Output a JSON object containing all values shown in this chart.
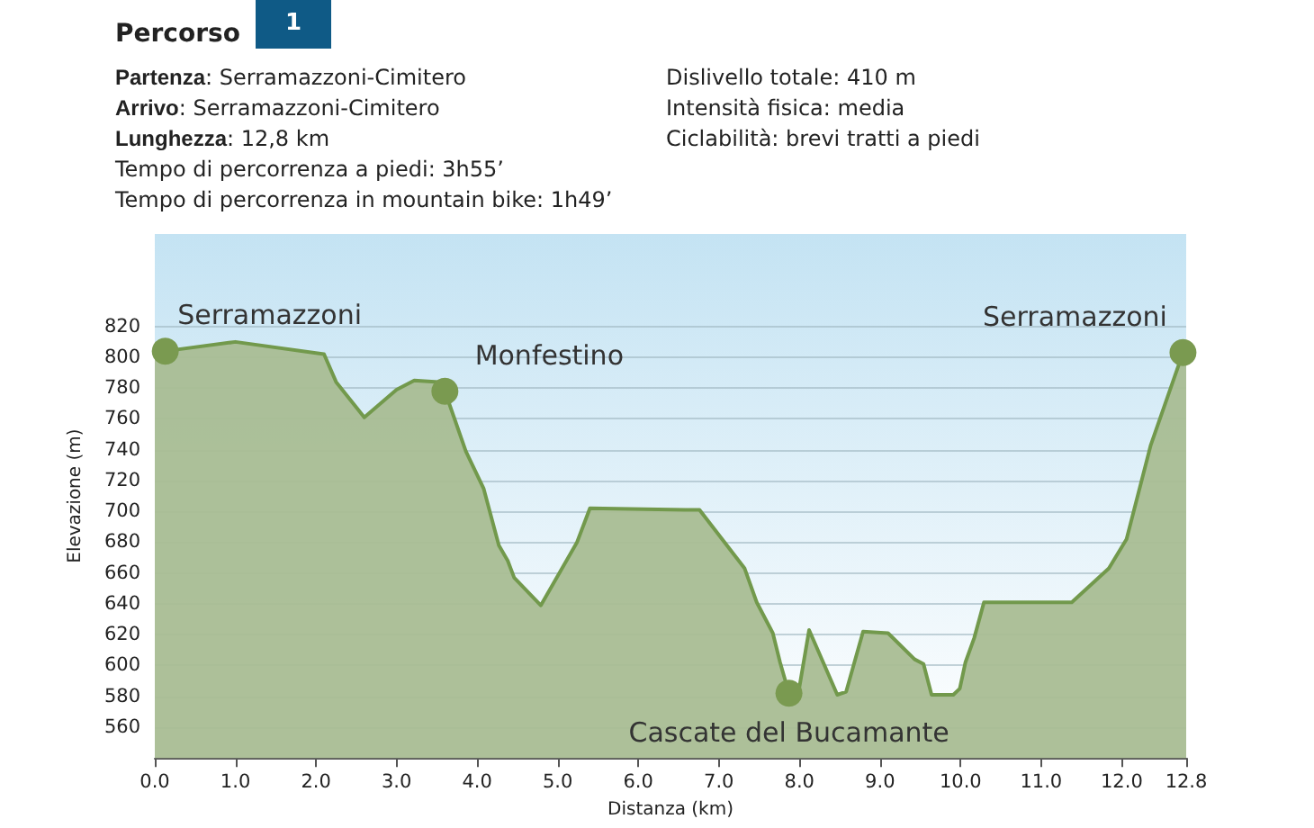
{
  "chart_data": {
    "type": "area",
    "title": "Percorso",
    "xlabel": "Distanza (km)",
    "ylabel": "Elevazione (m)",
    "annotations": [
      "1",
      "Partenza: Serramazzoni-Cimitero",
      "Arrivo: Serramazzoni-Cimitero",
      "Lunghezza: 12,8 km",
      "Tempo di percorrenza a piedi: 3h55’",
      "Tempo di percorrenza in mountain bike: 1h49’",
      "Dislivello totale: 410 m",
      "Intensità fisica: media",
      "Ciclabilità: brevi tratti a piedi",
      {
        "text": "Serramazzoni",
        "x": 0.13,
        "y": 804
      },
      {
        "text": "Monfestino",
        "x": 3.6,
        "y": 778
      },
      {
        "text": "Cascate del Bucamante",
        "x": 7.87,
        "y": 582
      },
      {
        "text": "Serramazzoni",
        "x": 12.76,
        "y": 803
      }
    ],
    "x": [
      0,
      0.13,
      1.0,
      2.1,
      2.25,
      2.6,
      3.0,
      3.22,
      3.52,
      3.6,
      3.86,
      4.08,
      4.27,
      4.38,
      4.46,
      4.79,
      5.24,
      5.4,
      6.58,
      6.76,
      7.32,
      7.47,
      7.67,
      7.76,
      7.87,
      8.0,
      8.12,
      8.47,
      8.58,
      8.79,
      9.1,
      9.43,
      9.54,
      9.64,
      9.91,
      9.99,
      10.06,
      10.17,
      10.29,
      11.38,
      11.84,
      12.06,
      12.36,
      12.76,
      12.8
    ],
    "series": [
      {
        "color": "#72994c",
        "values": [
          800,
          804,
          810,
          802,
          784,
          761,
          779,
          785,
          784,
          778,
          739,
          715,
          678,
          668,
          657,
          639,
          680,
          702,
          701,
          701,
          663,
          641,
          621,
          602,
          582,
          586,
          623,
          581,
          583,
          622,
          621,
          604,
          601,
          581,
          581,
          585,
          602,
          618,
          641,
          641,
          663,
          682,
          743,
          803,
          805
        ]
      }
    ],
    "xlim": [
      0,
      12.8
    ],
    "ylim": [
      540,
      880
    ],
    "xticks": [
      {
        "value": 0,
        "label": "0.0"
      },
      {
        "value": 1,
        "label": "1.0"
      },
      {
        "value": 2,
        "label": "2.0"
      },
      {
        "value": 3,
        "label": "3.0"
      },
      {
        "value": 4,
        "label": "4.0"
      },
      {
        "value": 5,
        "label": "5.0"
      },
      {
        "value": 6,
        "label": "6.0"
      },
      {
        "value": 7,
        "label": "7.0"
      },
      {
        "value": 8,
        "label": "8.0"
      },
      {
        "value": 9,
        "label": "9.0"
      },
      {
        "value": 10,
        "label": "10.0"
      },
      {
        "value": 11,
        "label": "11.0"
      },
      {
        "value": 12,
        "label": "12.0"
      },
      12.8
    ],
    "yticks": [
      560,
      580,
      600,
      620,
      640,
      660,
      680,
      700,
      720,
      740,
      760,
      780,
      800,
      820
    ],
    "grid": "y",
    "marker": "none",
    "line_style": "solid"
  }
}
